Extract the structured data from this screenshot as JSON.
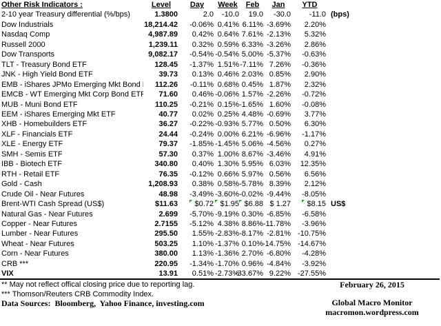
{
  "page": {
    "background": "#ffffff",
    "text_color": "#000000",
    "flag_color": "#23a028"
  },
  "table": {
    "title": "Other Risk Indicators :",
    "columns": [
      "Level",
      "Day",
      "Week",
      "Feb",
      "Jan",
      "YTD"
    ],
    "rows": [
      {
        "name": "2-10 year Treasury differential (%/bps)",
        "level": "1.3800",
        "day": "2.0",
        "week": "-10.0",
        "feb": "19.0",
        "jan": "-30.0",
        "ytd": "-11.0",
        "note": "(bps)"
      },
      {
        "name": "Dow Industrials",
        "level": "18,214.42",
        "day": "-0.06%",
        "week": "0.41%",
        "feb": "6.11%",
        "jan": "-3.69%",
        "ytd": "2.20%",
        "note": ""
      },
      {
        "name": "Nasdaq Comp",
        "level": "4,987.89",
        "day": "0.42%",
        "week": "0.64%",
        "feb": "7.61%",
        "jan": "-2.13%",
        "ytd": "5.32%",
        "note": ""
      },
      {
        "name": "Russell 2000",
        "level": "1,239.11",
        "day": "0.32%",
        "week": "0.59%",
        "feb": "6.33%",
        "jan": "-3.26%",
        "ytd": "2.86%",
        "note": ""
      },
      {
        "name": "Dow Transports",
        "level": "9,082.17",
        "day": "-0.54%",
        "week": "-0.54%",
        "feb": "5.00%",
        "jan": "-5.37%",
        "ytd": "-0.63%",
        "note": ""
      },
      {
        "name": "TLT - Treasury Bond ETF",
        "level": "128.45",
        "day": "-1.37%",
        "week": "1.51%",
        "feb": "-7.11%",
        "jan": "7.26%",
        "ytd": "-0.36%",
        "note": ""
      },
      {
        "name": "JNK - High Yield Bond ETF",
        "level": "39.73",
        "day": "0.13%",
        "week": "0.46%",
        "feb": "2.03%",
        "jan": "0.85%",
        "ytd": "2.90%",
        "note": ""
      },
      {
        "name": "EMB - iShares JPMo Emerging Mkt Bond ETF",
        "level": "112.26",
        "day": "-0.11%",
        "week": "0.68%",
        "feb": "0.45%",
        "jan": "1.87%",
        "ytd": "2.32%",
        "note": ""
      },
      {
        "name": "EMCB - WT Emerging Mkt Corp Bond ETF",
        "level": "71.60",
        "day": "0.46%",
        "week": "-0.06%",
        "feb": "1.57%",
        "jan": "-2.26%",
        "ytd": "-0.72%",
        "note": ""
      },
      {
        "name": "MUB - Muni Bond ETF",
        "level": "110.25",
        "day": "-0.21%",
        "week": "0.15%",
        "feb": "-1.65%",
        "jan": "1.60%",
        "ytd": "-0.08%",
        "note": ""
      },
      {
        "name": "EEM - iShares Emerging Mkt ETF",
        "level": "40.77",
        "day": "0.02%",
        "week": "0.25%",
        "feb": "4.48%",
        "jan": "-0.69%",
        "ytd": "3.77%",
        "note": ""
      },
      {
        "name": "XHB - Homebuilders ETF",
        "level": "36.27",
        "day": "-0.22%",
        "week": "-0.93%",
        "feb": "5.77%",
        "jan": "0.50%",
        "ytd": "6.30%",
        "note": ""
      },
      {
        "name": "XLF - Financials ETF",
        "level": "24.44",
        "day": "-0.24%",
        "week": "0.00%",
        "feb": "6.21%",
        "jan": "-6.96%",
        "ytd": "-1.17%",
        "note": ""
      },
      {
        "name": "XLE - Energy ETF",
        "level": "79.37",
        "day": "-1.85%",
        "week": "-1.45%",
        "feb": "5.06%",
        "jan": "-4.56%",
        "ytd": "0.27%",
        "note": ""
      },
      {
        "name": "SMH - Semis ETF",
        "level": "57.30",
        "day": "0.37%",
        "week": "1.00%",
        "feb": "8.67%",
        "jan": "-3.46%",
        "ytd": "4.91%",
        "note": ""
      },
      {
        "name": "IBB - Biotech ETF",
        "level": "340.80",
        "day": "0.40%",
        "week": "1.30%",
        "feb": "5.95%",
        "jan": "6.03%",
        "ytd": "12.35%",
        "note": ""
      },
      {
        "name": "RTH - Retail ETF",
        "level": "76.35",
        "day": "-0.12%",
        "week": "0.66%",
        "feb": "5.97%",
        "jan": "0.56%",
        "ytd": "6.56%",
        "note": ""
      },
      {
        "name": "Gold - Cash",
        "level": "1,208.93",
        "day": "0.38%",
        "week": "0.58%",
        "feb": "-5.78%",
        "jan": "8.39%",
        "ytd": "2.12%",
        "note": ""
      },
      {
        "name": "Crude Oil - Near Futures",
        "level": "48.98",
        "day": "-3.49%",
        "week": "-3.60%",
        "feb": "-0.02%",
        "jan": "-9.44%",
        "ytd": "-8.05%",
        "note": ""
      },
      {
        "name": "Brent-WTI Cash Spread (US$)",
        "level": "$11.63",
        "day": "$0.72",
        "week": "$1.95",
        "feb": "$6.88",
        "jan": "$ 1.27",
        "ytd": "$8.15",
        "note": "US$",
        "flags": [
          "day",
          "week",
          "feb",
          "ytd"
        ]
      },
      {
        "name": "Natural Gas - Near Futures",
        "level": "2.699",
        "day": "-5.70%",
        "week": "-9.19%",
        "feb": "0.30%",
        "jan": "-6.85%",
        "ytd": "-6.58%",
        "note": ""
      },
      {
        "name": "Copper - Near Futures",
        "level": "2.7155",
        "day": "-5.12%",
        "week": "4.38%",
        "feb": "8.86%",
        "jan": "-11.78%",
        "ytd": "-3.96%",
        "note": ""
      },
      {
        "name": "Lumber - Near Futures",
        "level": "295.50",
        "day": "1.55%",
        "week": "-2.83%",
        "feb": "-8.17%",
        "jan": "-2.81%",
        "ytd": "-10.75%",
        "note": ""
      },
      {
        "name": "Wheat - Near Futures",
        "level": "503.25",
        "day": "1.10%",
        "week": "-1.37%",
        "feb": "0.10%",
        "jan": "-14.75%",
        "ytd": "-14.67%",
        "note": ""
      },
      {
        "name": "Corn - Near Futures",
        "level": "380.00",
        "day": "1.13%",
        "week": "-1.36%",
        "feb": "2.70%",
        "jan": "-6.80%",
        "ytd": "-4.28%",
        "note": ""
      },
      {
        "name": "CRB ***",
        "level": "220.95",
        "day": "-1.34%",
        "week": "-1.70%",
        "feb": "0.96%",
        "jan": "-4.84%",
        "ytd": "-3.92%",
        "note": ""
      },
      {
        "name": "VIX",
        "level": "13.91",
        "day": "0.51%",
        "week": "-2.73%",
        "feb": "-33.67%",
        "jan": "9.22%",
        "ytd": "-27.55%",
        "note": "",
        "bold": true
      }
    ]
  },
  "footer": {
    "note_lag": "** May not reflect offical closing price due to reporting lag.",
    "note_crb": "*** Thomson/Reuters CRB Commodity Index.",
    "sources": "Data Sources:  Bloomberg,  Yahoo Finance, investing.com",
    "date": "February 26, 2015",
    "site_name": "Global Macro Monitor",
    "site_url": "macromon.wordpress.com"
  }
}
